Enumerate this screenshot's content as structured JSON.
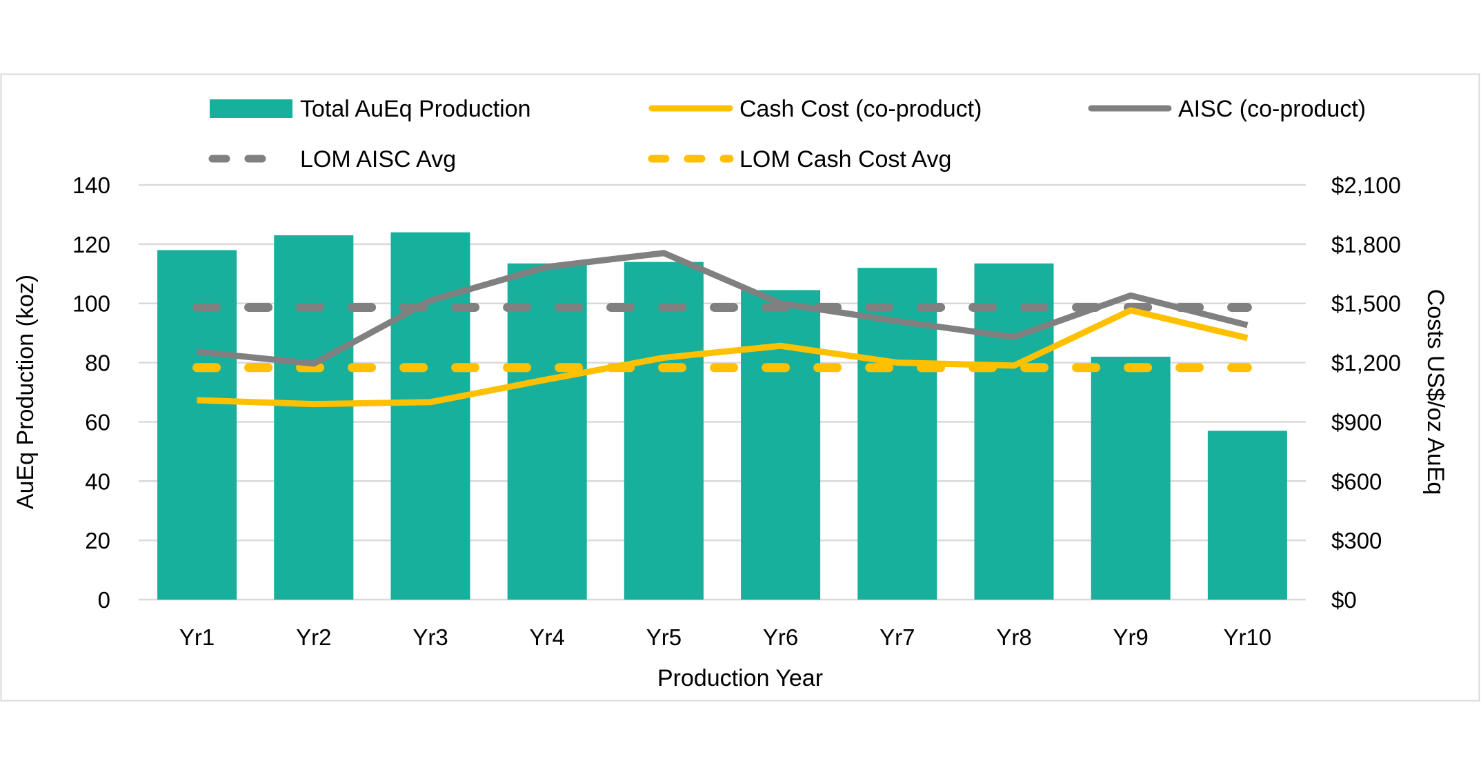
{
  "chart_data": {
    "type": "bar+line",
    "xlabel": "Production Year",
    "ylabel": "AuEq Production (koz)",
    "y2label": "Costs US$/oz AuEq",
    "categories": [
      "Yr1",
      "Yr2",
      "Yr3",
      "Yr4",
      "Yr5",
      "Yr6",
      "Yr7",
      "Yr8",
      "Yr9",
      "Yr10"
    ],
    "ylim": [
      0,
      140
    ],
    "yticks": [
      "0",
      "20",
      "40",
      "60",
      "80",
      "100",
      "120",
      "140"
    ],
    "y2lim": [
      0,
      2100
    ],
    "y2ticks": [
      "$0",
      "$300",
      "$600",
      "$900",
      "$1,200",
      "$1,500",
      "$1,800",
      "$2,100"
    ],
    "grid": true,
    "legend_position": "top",
    "series": [
      {
        "name": "Total AuEq Production",
        "type": "bar",
        "axis": "left",
        "color": "#17B09C",
        "values": [
          118,
          123,
          124,
          113.5,
          114,
          104.5,
          112,
          113.5,
          82,
          57
        ]
      },
      {
        "name": "Cash Cost (co-product)",
        "type": "line",
        "axis": "right",
        "color": "#FFC000",
        "values": [
          1010,
          990,
          1000,
          1115,
          1225,
          1285,
          1200,
          1185,
          1465,
          1325
        ]
      },
      {
        "name": "AISC (co-product)",
        "type": "line",
        "axis": "right",
        "color": "#808080",
        "values": [
          1255,
          1195,
          1515,
          1685,
          1755,
          1500,
          1410,
          1330,
          1540,
          1390
        ]
      },
      {
        "name": "LOM AISC Avg",
        "type": "dashed-line",
        "axis": "right",
        "color": "#808080",
        "values": [
          1480,
          1480,
          1480,
          1480,
          1480,
          1480,
          1480,
          1480,
          1480,
          1480
        ]
      },
      {
        "name": "LOM Cash Cost Avg",
        "type": "dashed-line",
        "axis": "right",
        "color": "#FFC000",
        "values": [
          1175,
          1175,
          1175,
          1175,
          1175,
          1175,
          1175,
          1175,
          1175,
          1175
        ]
      }
    ]
  }
}
